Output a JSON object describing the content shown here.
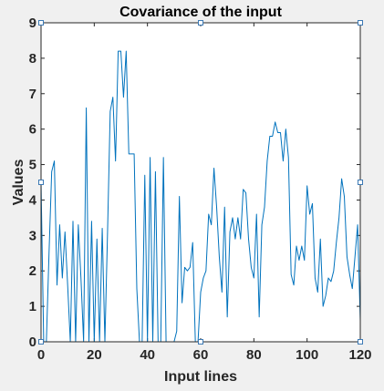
{
  "chart_data": {
    "type": "line",
    "title": "Covariance of the input",
    "xlabel": "Input lines",
    "ylabel": "Values",
    "xlim": [
      0,
      120
    ],
    "ylim": [
      0,
      9
    ],
    "xticks": [
      "0",
      "20",
      "40",
      "60",
      "80",
      "100",
      "120"
    ],
    "yticks": [
      "0",
      "1",
      "2",
      "3",
      "4",
      "5",
      "6",
      "7",
      "8",
      "9"
    ],
    "grid": false,
    "legend": "none",
    "line_color": "#0072bd",
    "selection_handle_color": "#3d7ab5",
    "series": [
      {
        "x": [
          0,
          1,
          2,
          3,
          4,
          5,
          6,
          7,
          8,
          9,
          10,
          11,
          12,
          13,
          14,
          15,
          16,
          17,
          18,
          19,
          20,
          21,
          22,
          23,
          24,
          25,
          26,
          27,
          28,
          29,
          30,
          31,
          32,
          33,
          34,
          35,
          36,
          37,
          38,
          39,
          40,
          41,
          42,
          43,
          44,
          45,
          46,
          47,
          48,
          49,
          50,
          51,
          52,
          53,
          54,
          55,
          56,
          57,
          58,
          59,
          60,
          61,
          62,
          63,
          64,
          65,
          66,
          67,
          68,
          69,
          70,
          71,
          72,
          73,
          74,
          75,
          76,
          77,
          78,
          79,
          80,
          81,
          82,
          83,
          84,
          85,
          86,
          87,
          88,
          89,
          90,
          91,
          92,
          93,
          94,
          95,
          96,
          97,
          98,
          99,
          100,
          101,
          102,
          103,
          104,
          105,
          106,
          107,
          108,
          109,
          110,
          111,
          112,
          113,
          114,
          115,
          116,
          117,
          118,
          119,
          120
        ],
        "y": [
          4.5,
          0.0,
          0.0,
          2.5,
          4.8,
          5.1,
          1.6,
          3.3,
          1.8,
          3.1,
          1.6,
          0.0,
          3.4,
          0.0,
          3.3,
          1.8,
          0.0,
          6.6,
          0.0,
          3.4,
          0.0,
          2.9,
          0.0,
          3.2,
          0.0,
          3.1,
          6.5,
          6.9,
          5.1,
          8.2,
          8.2,
          6.9,
          8.2,
          5.3,
          5.3,
          5.3,
          1.5,
          0.0,
          0.0,
          4.7,
          0.0,
          5.2,
          0.0,
          4.8,
          0.0,
          0.0,
          5.2,
          0.0,
          0.0,
          0.0,
          0.0,
          0.3,
          4.1,
          1.1,
          2.1,
          2.0,
          2.1,
          2.8,
          0.0,
          0.0,
          1.4,
          1.8,
          2.0,
          3.6,
          3.3,
          4.9,
          3.8,
          2.4,
          1.4,
          3.8,
          0.7,
          3.1,
          3.5,
          2.9,
          3.5,
          2.9,
          4.3,
          4.2,
          2.9,
          2.1,
          1.8,
          3.6,
          0.7,
          3.3,
          3.8,
          5.1,
          5.8,
          5.8,
          6.2,
          5.9,
          5.9,
          5.1,
          6.0,
          5.2,
          1.9,
          1.6,
          2.7,
          2.3,
          2.7,
          2.3,
          4.4,
          3.6,
          3.9,
          1.8,
          1.4,
          2.9,
          1.0,
          1.3,
          1.8,
          1.7,
          2.0,
          2.8,
          3.5,
          4.6,
          4.1,
          2.4,
          1.9,
          1.5,
          2.4,
          3.3,
          0.6
        ]
      }
    ]
  }
}
